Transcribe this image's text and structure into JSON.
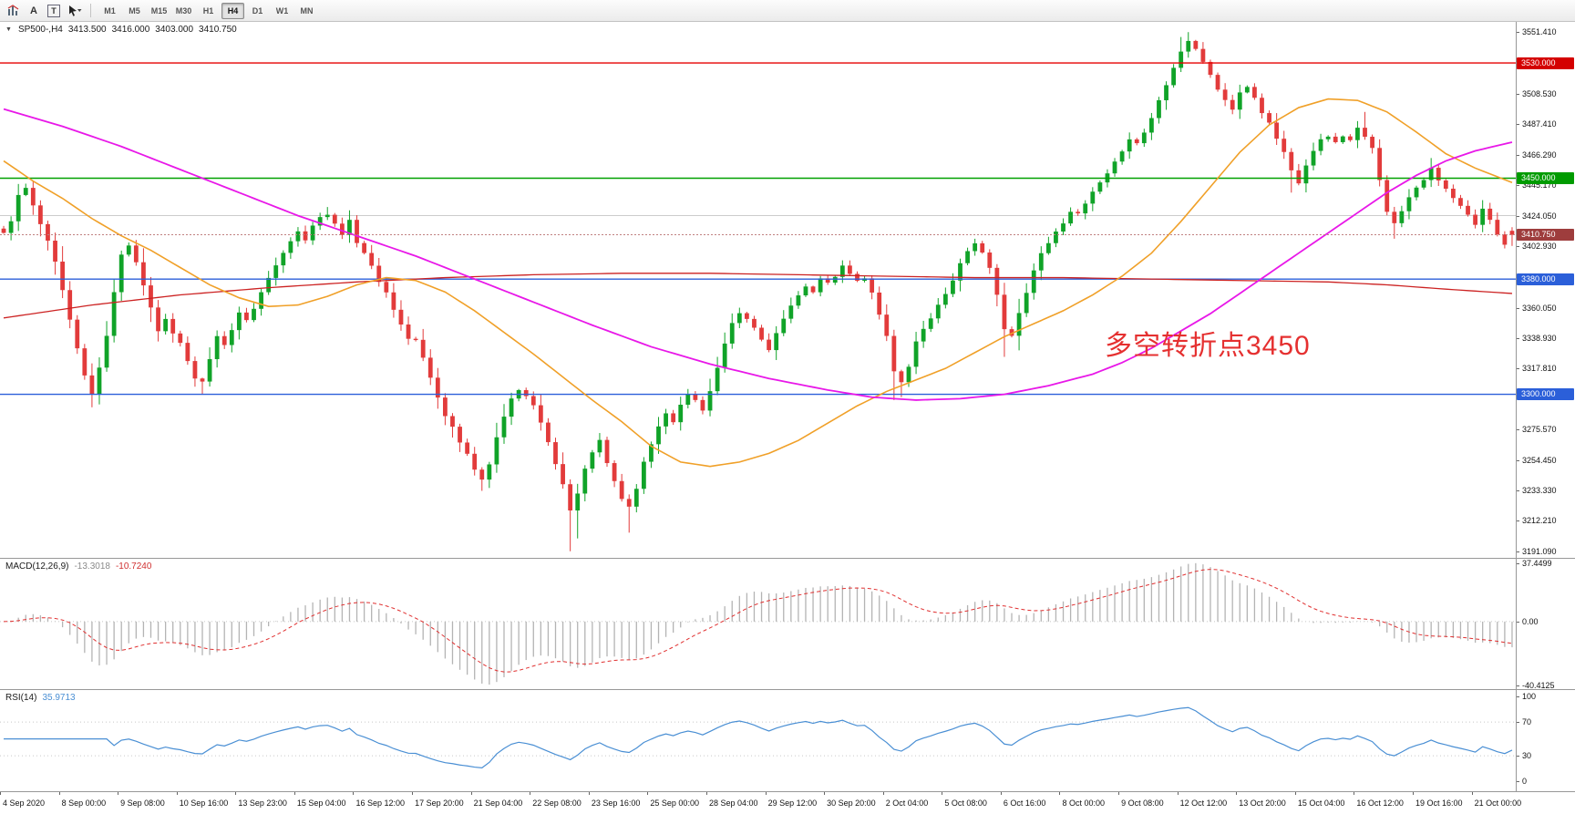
{
  "toolbar": {
    "tools": [
      {
        "name": "chart-tool-icon",
        "glyph": "chart"
      },
      {
        "name": "text-tool-icon",
        "glyph": "A"
      },
      {
        "name": "text-label-tool-icon",
        "glyph": "T"
      },
      {
        "name": "pointer-tool-icon",
        "glyph": "pointer"
      }
    ],
    "timeframes": [
      {
        "label": "M1",
        "active": false
      },
      {
        "label": "M5",
        "active": false
      },
      {
        "label": "M15",
        "active": false
      },
      {
        "label": "M30",
        "active": false
      },
      {
        "label": "H1",
        "active": false
      },
      {
        "label": "H4",
        "active": true
      },
      {
        "label": "D1",
        "active": false
      },
      {
        "label": "W1",
        "active": false
      },
      {
        "label": "MN",
        "active": false
      }
    ]
  },
  "chart": {
    "title": {
      "symbol": "SP500-,H4",
      "open": "3413.500",
      "high": "3416.000",
      "low": "3403.000",
      "close": "3410.750"
    }
  },
  "annotation": {
    "text": "多空转折点3450",
    "color": "#e53030"
  },
  "indicators": {
    "macd": {
      "label": "MACD(12,26,9)",
      "value_main": "-13.3018",
      "value_signal": "-10.7240"
    },
    "rsi": {
      "label": "RSI(14)",
      "value": "35.9713"
    }
  },
  "chart_data": {
    "type": "candlestick",
    "title": "SP500-,H4",
    "timeframe": "H4",
    "bar_count": 206,
    "seed": 11,
    "last_ohlc": {
      "open": 3413.5,
      "high": 3416.0,
      "low": 3403.0,
      "close": 3410.75
    },
    "price_range": {
      "top": 3558.5,
      "bottom": 3186.5
    },
    "colors": {
      "up": "#10a328",
      "down": "#e23b3b"
    },
    "price_ticks": [
      "3551.410",
      "3508.530",
      "3487.410",
      "3466.290",
      "3445.170",
      "3424.050",
      "3402.930",
      "3360.050",
      "3338.930",
      "3317.810",
      "3275.570",
      "3254.450",
      "3233.330",
      "3212.210",
      "3191.090"
    ],
    "price_badges": [
      {
        "label": "3530.000",
        "price": 3530.0,
        "color": "#d40000"
      },
      {
        "label": "3450.000",
        "price": 3450.0,
        "color": "#009b00"
      },
      {
        "label": "3410.750",
        "price": 3410.75,
        "color": "#9e3d3d"
      },
      {
        "label": "3380.000",
        "price": 3380.0,
        "color": "#2b5fd9"
      },
      {
        "label": "3300.000",
        "price": 3300.0,
        "color": "#2b5fd9"
      }
    ],
    "hlines": [
      {
        "price": 3530.0,
        "color": "#e60000",
        "width": 1.4
      },
      {
        "price": 3450.0,
        "color": "#00a000",
        "width": 1.4
      },
      {
        "price": 3380.0,
        "color": "#2b5fd9",
        "width": 1.4
      },
      {
        "price": 3300.0,
        "color": "#2b5fd9",
        "width": 1.4
      }
    ],
    "aux_line": {
      "price": 3424.05,
      "color": "#cccccc"
    },
    "bid": {
      "price": 3410.75,
      "line_color": "#c08080"
    },
    "closes_by_bar": [
      3412,
      3420,
      3438,
      3443,
      3430,
      3418,
      3408,
      3392,
      3372,
      3352,
      3332,
      3312,
      3300,
      3318,
      3340,
      3372,
      3398,
      3404,
      3392,
      3376,
      3360,
      3345,
      3352,
      3342,
      3336,
      3322,
      3310,
      3308,
      3325,
      3340,
      3335,
      3346,
      3356,
      3350,
      3360,
      3372,
      3380,
      3390,
      3398,
      3406,
      3412,
      3408,
      3416,
      3422,
      3425,
      3420,
      3412,
      3420,
      3405,
      3398,
      3390,
      3378,
      3370,
      3360,
      3348,
      3340,
      3338,
      3325,
      3310,
      3298,
      3285,
      3278,
      3268,
      3258,
      3248,
      3240,
      3252,
      3270,
      3285,
      3296,
      3304,
      3300,
      3292,
      3280,
      3268,
      3252,
      3238,
      3218,
      3230,
      3248,
      3260,
      3267,
      3252,
      3240,
      3228,
      3222,
      3236,
      3252,
      3266,
      3278,
      3288,
      3282,
      3292,
      3300,
      3296,
      3290,
      3302,
      3318,
      3334,
      3348,
      3356,
      3352,
      3346,
      3338,
      3332,
      3342,
      3352,
      3360,
      3368,
      3376,
      3372,
      3380,
      3376,
      3382,
      3388,
      3384,
      3378,
      3380,
      3372,
      3356,
      3340,
      3316,
      3308,
      3320,
      3336,
      3346,
      3354,
      3362,
      3370,
      3380,
      3390,
      3398,
      3404,
      3400,
      3388,
      3368,
      3345,
      3340,
      3356,
      3372,
      3386,
      3398,
      3406,
      3412,
      3420,
      3428,
      3424,
      3432,
      3440,
      3446,
      3452,
      3460,
      3470,
      3478,
      3474,
      3482,
      3492,
      3504,
      3516,
      3528,
      3538,
      3546,
      3540,
      3530,
      3522,
      3512,
      3504,
      3498,
      3508,
      3514,
      3506,
      3496,
      3488,
      3478,
      3468,
      3455,
      3448,
      3460,
      3470,
      3476,
      3480,
      3474,
      3480,
      3476,
      3484,
      3478,
      3470,
      3450,
      3428,
      3418,
      3428,
      3438,
      3444,
      3450,
      3456,
      3448,
      3442,
      3436,
      3430,
      3424,
      3418,
      3428,
      3422,
      3412,
      3405,
      3410.75
    ],
    "wick_overrides": [
      [
        2,
        "h",
        3446
      ],
      [
        12,
        "l",
        3291
      ],
      [
        13,
        "l",
        3293
      ],
      [
        27,
        "l",
        3300
      ],
      [
        44,
        "h",
        3430
      ],
      [
        59,
        "l",
        3290
      ],
      [
        61,
        "l",
        3270
      ],
      [
        65,
        "l",
        3233
      ],
      [
        66,
        "l",
        3235
      ],
      [
        77,
        "l",
        3191.1
      ],
      [
        78,
        "l",
        3200
      ],
      [
        85,
        "l",
        3204
      ],
      [
        121,
        "l",
        3296
      ],
      [
        122,
        "l",
        3298
      ],
      [
        136,
        "l",
        3326
      ],
      [
        160,
        "h",
        3548
      ],
      [
        161,
        "h",
        3551.4
      ],
      [
        162,
        "h",
        3546
      ],
      [
        175,
        "l",
        3440
      ],
      [
        185,
        "h",
        3496
      ],
      [
        189,
        "l",
        3408
      ],
      [
        194,
        "h",
        3464
      ],
      [
        205,
        "o",
        3413.5
      ],
      [
        205,
        "h",
        3416
      ],
      [
        205,
        "l",
        3403
      ],
      [
        205,
        "c",
        3410.75
      ]
    ],
    "moving_averages": [
      {
        "name": "ma-slow-red",
        "color": "#cc2222",
        "width": 1.3,
        "points": [
          [
            0,
            3353
          ],
          [
            12,
            3362
          ],
          [
            24,
            3369
          ],
          [
            36,
            3374
          ],
          [
            48,
            3378
          ],
          [
            60,
            3381
          ],
          [
            72,
            3383
          ],
          [
            84,
            3384
          ],
          [
            96,
            3384
          ],
          [
            108,
            3383
          ],
          [
            120,
            3382
          ],
          [
            132,
            3381
          ],
          [
            144,
            3381
          ],
          [
            156,
            3380
          ],
          [
            168,
            3379
          ],
          [
            180,
            3378
          ],
          [
            188,
            3376
          ],
          [
            196,
            3373
          ],
          [
            205,
            3370
          ]
        ]
      },
      {
        "name": "ma-fast-orange",
        "color": "#f0a028",
        "width": 1.6,
        "points": [
          [
            0,
            3462
          ],
          [
            4,
            3448
          ],
          [
            8,
            3436
          ],
          [
            12,
            3422
          ],
          [
            16,
            3410
          ],
          [
            20,
            3400
          ],
          [
            24,
            3388
          ],
          [
            28,
            3376
          ],
          [
            32,
            3367
          ],
          [
            36,
            3361
          ],
          [
            40,
            3362
          ],
          [
            44,
            3368
          ],
          [
            48,
            3376
          ],
          [
            52,
            3381
          ],
          [
            56,
            3379
          ],
          [
            60,
            3371
          ],
          [
            64,
            3358
          ],
          [
            68,
            3343
          ],
          [
            72,
            3328
          ],
          [
            76,
            3312
          ],
          [
            80,
            3296
          ],
          [
            84,
            3281
          ],
          [
            88,
            3264
          ],
          [
            92,
            3253
          ],
          [
            96,
            3250
          ],
          [
            100,
            3253
          ],
          [
            104,
            3259
          ],
          [
            108,
            3268
          ],
          [
            112,
            3280
          ],
          [
            116,
            3292
          ],
          [
            120,
            3302
          ],
          [
            124,
            3310
          ],
          [
            128,
            3318
          ],
          [
            132,
            3329
          ],
          [
            136,
            3340
          ],
          [
            140,
            3349
          ],
          [
            144,
            3358
          ],
          [
            148,
            3369
          ],
          [
            152,
            3382
          ],
          [
            156,
            3398
          ],
          [
            160,
            3420
          ],
          [
            164,
            3444
          ],
          [
            168,
            3468
          ],
          [
            172,
            3487
          ],
          [
            176,
            3499
          ],
          [
            180,
            3505
          ],
          [
            184,
            3504
          ],
          [
            188,
            3496
          ],
          [
            192,
            3482
          ],
          [
            196,
            3467
          ],
          [
            200,
            3457
          ],
          [
            203,
            3451
          ],
          [
            205,
            3447
          ]
        ]
      },
      {
        "name": "ma-mid-magenta",
        "color": "#e818e8",
        "width": 1.8,
        "points": [
          [
            0,
            3498
          ],
          [
            8,
            3486
          ],
          [
            16,
            3472
          ],
          [
            24,
            3456
          ],
          [
            32,
            3440
          ],
          [
            40,
            3424
          ],
          [
            48,
            3410
          ],
          [
            56,
            3396
          ],
          [
            64,
            3380
          ],
          [
            72,
            3364
          ],
          [
            80,
            3348
          ],
          [
            88,
            3333
          ],
          [
            96,
            3321
          ],
          [
            104,
            3311
          ],
          [
            112,
            3303
          ],
          [
            118,
            3298
          ],
          [
            124,
            3296
          ],
          [
            130,
            3297
          ],
          [
            136,
            3300
          ],
          [
            142,
            3306
          ],
          [
            148,
            3314
          ],
          [
            152,
            3322
          ],
          [
            156,
            3332
          ],
          [
            160,
            3344
          ],
          [
            164,
            3356
          ],
          [
            168,
            3370
          ],
          [
            172,
            3384
          ],
          [
            176,
            3398
          ],
          [
            180,
            3412
          ],
          [
            184,
            3426
          ],
          [
            188,
            3440
          ],
          [
            192,
            3452
          ],
          [
            196,
            3462
          ],
          [
            200,
            3469
          ],
          [
            205,
            3475
          ]
        ]
      }
    ],
    "macd_panel": {
      "axis": [
        "37.4499",
        "0.00",
        "-40.4125"
      ],
      "hist_color": "#b4b4b4",
      "signal_color": "#e03030"
    },
    "rsi_panel": {
      "axis": [
        "100",
        "70",
        "30",
        "0"
      ],
      "levels": [
        70,
        30
      ],
      "line_color": "#4a8fd4",
      "level_color": "#c8c8c8"
    },
    "time_labels": [
      "4 Sep 2020",
      "8 Sep 00:00",
      "9 Sep 08:00",
      "10 Sep 16:00",
      "13 Sep 23:00",
      "15 Sep 04:00",
      "16 Sep 12:00",
      "17 Sep 20:00",
      "21 Sep 04:00",
      "22 Sep 08:00",
      "23 Sep 16:00",
      "25 Sep 00:00",
      "28 Sep 04:00",
      "29 Sep 12:00",
      "30 Sep 20:00",
      "2 Oct 04:00",
      "5 Oct 08:00",
      "6 Oct 16:00",
      "8 Oct 00:00",
      "9 Oct 08:00",
      "12 Oct 12:00",
      "13 Oct 20:00",
      "15 Oct 04:00",
      "16 Oct 12:00",
      "19 Oct 16:00",
      "21 Oct 00:00"
    ],
    "label_every_bars": 8
  }
}
